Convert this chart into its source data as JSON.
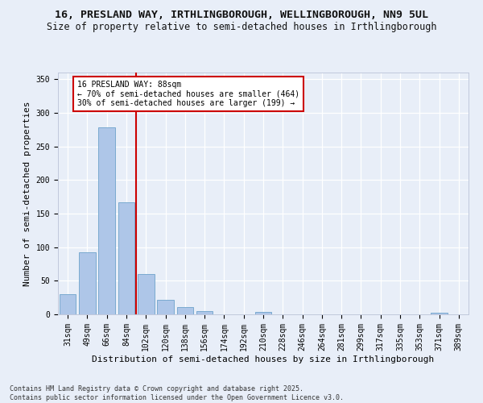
{
  "title": "16, PRESLAND WAY, IRTHLINGBOROUGH, WELLINGBOROUGH, NN9 5UL",
  "subtitle": "Size of property relative to semi-detached houses in Irthlingborough",
  "xlabel": "Distribution of semi-detached houses by size in Irthlingborough",
  "ylabel": "Number of semi-detached properties",
  "categories": [
    "31sqm",
    "49sqm",
    "66sqm",
    "84sqm",
    "102sqm",
    "120sqm",
    "138sqm",
    "156sqm",
    "174sqm",
    "192sqm",
    "210sqm",
    "228sqm",
    "246sqm",
    "264sqm",
    "281sqm",
    "299sqm",
    "317sqm",
    "335sqm",
    "353sqm",
    "371sqm",
    "389sqm"
  ],
  "values": [
    30,
    93,
    279,
    167,
    60,
    22,
    11,
    5,
    0,
    0,
    4,
    0,
    0,
    0,
    0,
    0,
    0,
    0,
    0,
    2,
    0
  ],
  "bar_color": "#aec6e8",
  "bar_edge_color": "#7aaad0",
  "vline_color": "#cc0000",
  "vline_position": 3.5,
  "annotation_title": "16 PRESLAND WAY: 88sqm",
  "annotation_line1": "← 70% of semi-detached houses are smaller (464)",
  "annotation_line2": "30% of semi-detached houses are larger (199) →",
  "annotation_box_color": "#cc0000",
  "ylim": [
    0,
    360
  ],
  "yticks": [
    0,
    50,
    100,
    150,
    200,
    250,
    300,
    350
  ],
  "background_color": "#e8eef8",
  "footer": "Contains HM Land Registry data © Crown copyright and database right 2025.\nContains public sector information licensed under the Open Government Licence v3.0.",
  "title_fontsize": 9.5,
  "subtitle_fontsize": 8.5,
  "xlabel_fontsize": 8,
  "ylabel_fontsize": 8,
  "tick_fontsize": 7,
  "footer_fontsize": 6
}
